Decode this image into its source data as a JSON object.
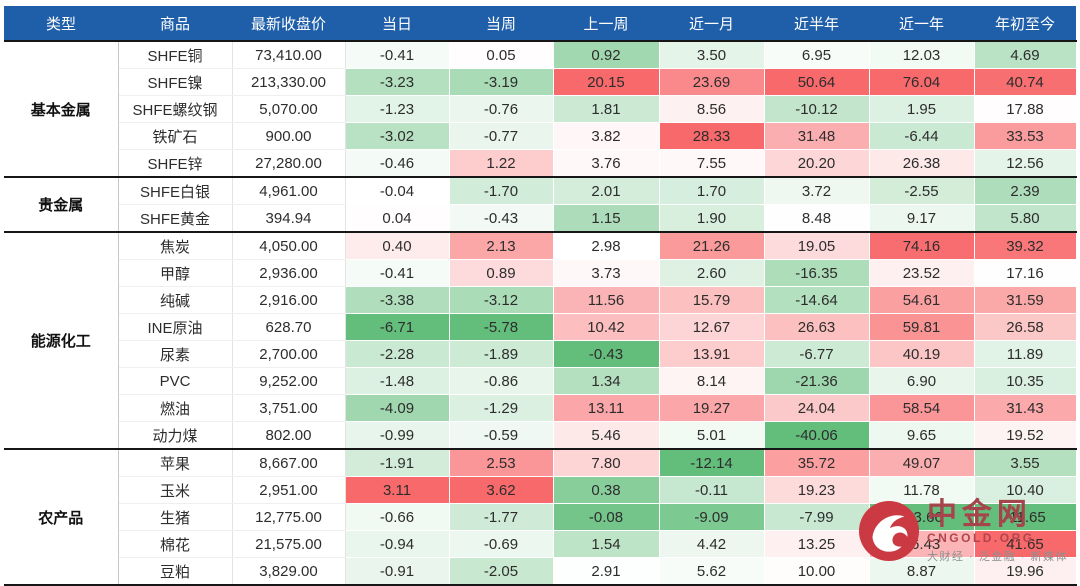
{
  "colors": {
    "header_bg": "#1F5FA9",
    "header_text": "#FFFFFF",
    "scale_max": "#F8696B",
    "scale_min": "#63BE7B",
    "scale_mid": "#FFFFFF",
    "group_border": "#161616",
    "body_text": "#2D2D2D"
  },
  "chart_data": {
    "type": "table",
    "columns": [
      "类型",
      "商品",
      "最新收盘价",
      "当日",
      "当周",
      "上一周",
      "近一月",
      "近半年",
      "近一年",
      "年初至今"
    ],
    "percent_columns": [
      "当日",
      "当周",
      "上一周",
      "近一月",
      "近半年",
      "近一年",
      "年初至今"
    ],
    "color_scale_note": "per-column 3-color heatmap: column max = red #F8696B, midpoint = white, column min = green #63BE7B",
    "groups": [
      {
        "name": "基本金属",
        "rows": [
          {
            "commodity": "SHFE铜",
            "close": "73,410.00",
            "changes": [
              "-0.41",
              "0.05",
              "0.92",
              "3.50",
              "6.95",
              "12.03",
              "4.69"
            ]
          },
          {
            "commodity": "SHFE镍",
            "close": "213,330.00",
            "changes": [
              "-3.23",
              "-3.19",
              "20.15",
              "23.69",
              "50.64",
              "76.04",
              "40.74"
            ]
          },
          {
            "commodity": "SHFE螺纹钢",
            "close": "5,070.00",
            "changes": [
              "-1.23",
              "-0.76",
              "1.81",
              "8.56",
              "-10.12",
              "1.95",
              "17.88"
            ]
          },
          {
            "commodity": "铁矿石",
            "close": "900.00",
            "changes": [
              "-3.02",
              "-0.77",
              "3.82",
              "28.33",
              "31.48",
              "-6.44",
              "33.53"
            ]
          },
          {
            "commodity": "SHFE锌",
            "close": "27,280.00",
            "changes": [
              "-0.46",
              "1.22",
              "3.76",
              "7.55",
              "20.20",
              "26.38",
              "12.56"
            ]
          }
        ]
      },
      {
        "name": "贵金属",
        "rows": [
          {
            "commodity": "SHFE白银",
            "close": "4,961.00",
            "changes": [
              "-0.04",
              "-1.70",
              "2.01",
              "1.70",
              "3.72",
              "-2.55",
              "2.39"
            ]
          },
          {
            "commodity": "SHFE黄金",
            "close": "394.94",
            "changes": [
              "0.04",
              "-0.43",
              "1.15",
              "1.90",
              "8.48",
              "9.17",
              "5.80"
            ]
          }
        ]
      },
      {
        "name": "能源化工",
        "rows": [
          {
            "commodity": "焦炭",
            "close": "4,050.00",
            "changes": [
              "0.40",
              "2.13",
              "2.98",
              "21.26",
              "19.05",
              "74.16",
              "39.32"
            ]
          },
          {
            "commodity": "甲醇",
            "close": "2,936.00",
            "changes": [
              "-0.41",
              "0.89",
              "3.73",
              "2.60",
              "-16.35",
              "23.52",
              "17.16"
            ]
          },
          {
            "commodity": "纯碱",
            "close": "2,916.00",
            "changes": [
              "-3.38",
              "-3.12",
              "11.56",
              "15.79",
              "-14.64",
              "54.61",
              "31.59"
            ]
          },
          {
            "commodity": "INE原油",
            "close": "628.70",
            "changes": [
              "-6.71",
              "-5.78",
              "10.42",
              "12.67",
              "26.63",
              "59.81",
              "26.58"
            ]
          },
          {
            "commodity": "尿素",
            "close": "2,700.00",
            "changes": [
              "-2.28",
              "-1.89",
              "-0.43",
              "13.91",
              "-6.77",
              "40.19",
              "11.89"
            ]
          },
          {
            "commodity": "PVC",
            "close": "9,252.00",
            "changes": [
              "-1.48",
              "-0.86",
              "1.34",
              "8.14",
              "-21.36",
              "6.90",
              "10.35"
            ]
          },
          {
            "commodity": "燃油",
            "close": "3,751.00",
            "changes": [
              "-4.09",
              "-1.29",
              "13.11",
              "19.27",
              "24.04",
              "58.54",
              "31.43"
            ]
          },
          {
            "commodity": "动力煤",
            "close": "802.00",
            "changes": [
              "-0.99",
              "-0.59",
              "5.46",
              "5.01",
              "-40.06",
              "9.65",
              "19.52"
            ]
          }
        ]
      },
      {
        "name": "农产品",
        "rows": [
          {
            "commodity": "苹果",
            "close": "8,667.00",
            "changes": [
              "-1.91",
              "2.53",
              "7.80",
              "-12.14",
              "35.72",
              "49.07",
              "3.55"
            ]
          },
          {
            "commodity": "玉米",
            "close": "2,951.00",
            "changes": [
              "3.11",
              "3.62",
              "0.38",
              "-0.11",
              "19.23",
              "11.78",
              "10.40"
            ]
          },
          {
            "commodity": "生猪",
            "close": "12,775.00",
            "changes": [
              "-0.66",
              "-1.77",
              "-0.08",
              "-9.09",
              "-7.99",
              "-53.66",
              "-11.65"
            ]
          },
          {
            "commodity": "棉花",
            "close": "21,575.00",
            "changes": [
              "-0.94",
              "-0.69",
              "1.54",
              "4.42",
              "13.25",
              "46.43",
              "41.65"
            ]
          },
          {
            "commodity": "豆粕",
            "close": "3,829.00",
            "changes": [
              "-0.91",
              "-2.05",
              "2.91",
              "5.62",
              "10.00",
              "8.87",
              "19.96"
            ]
          }
        ]
      }
    ]
  },
  "watermark": {
    "name": "中金网",
    "domain": "CNGOLD.ORG",
    "slogan": "大财经 · 泛金融 · 新媒体",
    "logo_color": "#CB3A43",
    "text_color": "#A6444B",
    "domain_color": "#B2454C"
  }
}
